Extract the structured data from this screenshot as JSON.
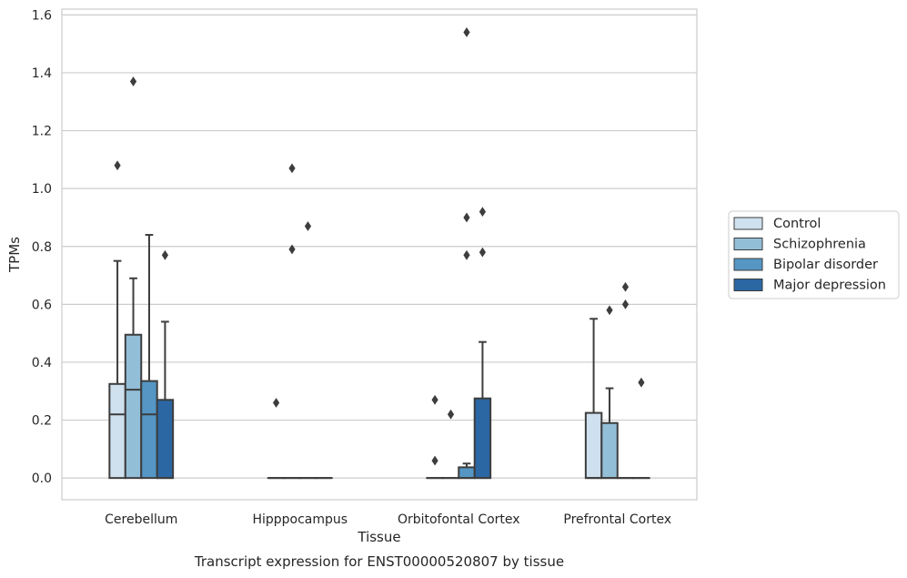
{
  "caption": "Transcript expression for ENST00000520807 by tissue",
  "chart_data": {
    "type": "box",
    "xlabel": "Tissue",
    "ylabel": "TPMs",
    "ylim": [
      -0.075,
      1.62
    ],
    "yticks": [
      0.0,
      0.2,
      0.4,
      0.6,
      0.8,
      1.0,
      1.2,
      1.4,
      1.6
    ],
    "ytick_labels": [
      "0.0",
      "0.2",
      "0.4",
      "0.6",
      "0.8",
      "1.0",
      "1.2",
      "1.4",
      "1.6"
    ],
    "grid": true,
    "legend_position": "right",
    "categories": [
      "Cerebellum",
      "Hipppocampus",
      "Orbitofontal Cortex",
      "Prefrontal Cortex"
    ],
    "series": [
      {
        "name": "Control",
        "color": "#cfe0ef",
        "boxes": [
          {
            "min": 0.0,
            "q1": 0.0,
            "median": 0.22,
            "q3": 0.325,
            "max": 0.75,
            "outliers": [
              1.08
            ]
          },
          {
            "min": 0.0,
            "q1": 0.0,
            "median": 0.0,
            "q3": 0.0,
            "max": 0.0,
            "outliers": [
              0.26
            ]
          },
          {
            "min": 0.0,
            "q1": 0.0,
            "median": 0.0,
            "q3": 0.0,
            "max": 0.0,
            "outliers": [
              0.27,
              0.06
            ]
          },
          {
            "min": 0.0,
            "q1": 0.0,
            "median": 0.0,
            "q3": 0.225,
            "max": 0.55,
            "outliers": []
          }
        ]
      },
      {
        "name": "Schizophrenia",
        "color": "#93bed8",
        "boxes": [
          {
            "min": 0.0,
            "q1": 0.0,
            "median": 0.305,
            "q3": 0.495,
            "max": 0.69,
            "outliers": [
              1.37
            ]
          },
          {
            "min": 0.0,
            "q1": 0.0,
            "median": 0.0,
            "q3": 0.0,
            "max": 0.0,
            "outliers": [
              1.07,
              0.79
            ]
          },
          {
            "min": 0.0,
            "q1": 0.0,
            "median": 0.0,
            "q3": 0.0,
            "max": 0.0,
            "outliers": [
              0.22
            ]
          },
          {
            "min": 0.0,
            "q1": 0.0,
            "median": 0.0,
            "q3": 0.19,
            "max": 0.31,
            "outliers": [
              0.58
            ]
          }
        ]
      },
      {
        "name": "Bipolar disorder",
        "color": "#5596c4",
        "boxes": [
          {
            "min": 0.0,
            "q1": 0.0,
            "median": 0.22,
            "q3": 0.335,
            "max": 0.84,
            "outliers": []
          },
          {
            "min": 0.0,
            "q1": 0.0,
            "median": 0.0,
            "q3": 0.0,
            "max": 0.0,
            "outliers": [
              0.87
            ]
          },
          {
            "min": 0.0,
            "q1": 0.0,
            "median": 0.0,
            "q3": 0.037,
            "max": 0.05,
            "outliers": [
              0.9,
              0.77,
              1.54
            ]
          },
          {
            "min": 0.0,
            "q1": 0.0,
            "median": 0.0,
            "q3": 0.0,
            "max": 0.0,
            "outliers": [
              0.66,
              0.6
            ]
          }
        ]
      },
      {
        "name": "Major depression",
        "color": "#2b67a3",
        "boxes": [
          {
            "min": 0.0,
            "q1": 0.0,
            "median": 0.0,
            "q3": 0.27,
            "max": 0.54,
            "outliers": [
              0.77
            ]
          },
          {
            "min": 0.0,
            "q1": 0.0,
            "median": 0.0,
            "q3": 0.0,
            "max": 0.0,
            "outliers": []
          },
          {
            "min": 0.0,
            "q1": 0.0,
            "median": 0.0,
            "q3": 0.275,
            "max": 0.47,
            "outliers": [
              0.92,
              0.78
            ]
          },
          {
            "min": 0.0,
            "q1": 0.0,
            "median": 0.0,
            "q3": 0.0,
            "max": 0.0,
            "outliers": [
              0.33
            ]
          }
        ]
      }
    ]
  }
}
